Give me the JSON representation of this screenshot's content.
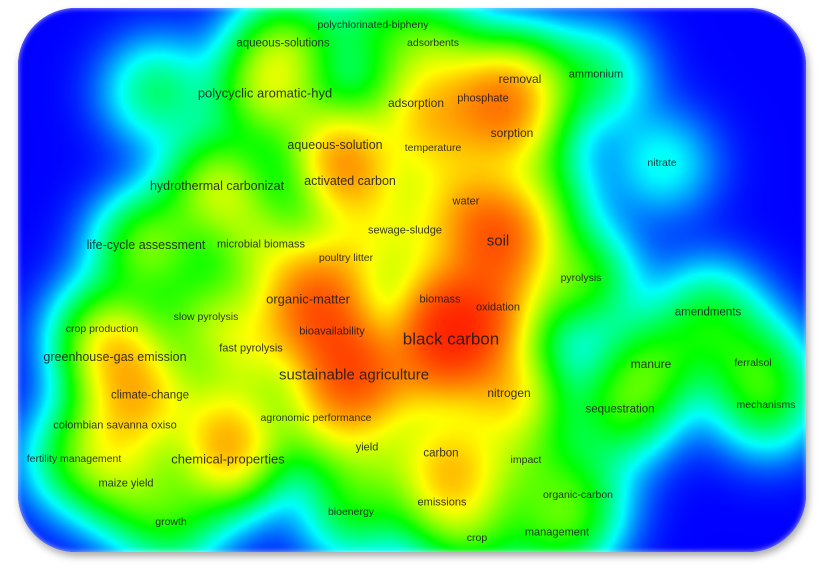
{
  "visualization": {
    "type": "keyword density map",
    "colormap": [
      "#0000ff",
      "#00ffff",
      "#00ff00",
      "#ffff00",
      "#ff0000"
    ],
    "keywords": [
      "polychlorinated-bipheny",
      "aqueous-solutions",
      "adsorbents",
      "removal",
      "ammonium",
      "polycyclic aromatic-hyd",
      "adsorption",
      "phosphate",
      "sorption",
      "aqueous-solution",
      "temperature",
      "nitrate",
      "hydrothermal carbonizat",
      "activated carbon",
      "water",
      "sewage-sludge",
      "soil",
      "life-cycle assessment",
      "microbial biomass",
      "poultry litter",
      "pyrolysis",
      "amendments",
      "organic-matter",
      "biomass",
      "oxidation",
      "slow pyrolysis",
      "crop production",
      "bioavailability",
      "black carbon",
      "greenhouse-gas emission",
      "fast pyrolysis",
      "manure",
      "ferralsol",
      "sustainable agriculture",
      "nitrogen",
      "climate-change",
      "mechanisms",
      "sequestration",
      "agronomic performance",
      "colombian savanna oxiso",
      "yield",
      "carbon",
      "impact",
      "fertility management",
      "chemical-properties",
      "maize yield",
      "organic-carbon",
      "emissions",
      "bioenergy",
      "growth",
      "management",
      "crop"
    ]
  }
}
